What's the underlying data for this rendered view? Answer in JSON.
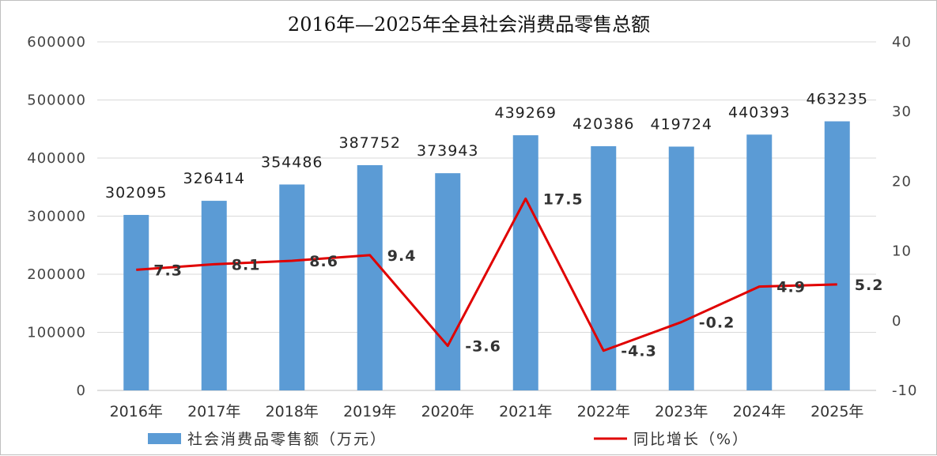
{
  "chart_data": {
    "type": "bar+line",
    "title": "2016年—2025年全县社会消费品零售总额",
    "categories": [
      "2016年",
      "2017年",
      "2018年",
      "2019年",
      "2020年",
      "2021年",
      "2022年",
      "2023年",
      "2024年",
      "2025年"
    ],
    "series": [
      {
        "name": "社会消费品零售额（万元）",
        "type": "bar",
        "axis": "left",
        "color": "#5b9bd5",
        "values": [
          302095,
          326414,
          354486,
          387752,
          373943,
          439269,
          420386,
          419724,
          440393,
          463235
        ]
      },
      {
        "name": "同比增长（%）",
        "type": "line",
        "axis": "right",
        "color": "#e00000",
        "values": [
          7.3,
          8.1,
          8.6,
          9.4,
          -3.6,
          17.5,
          -4.3,
          -0.2,
          4.9,
          5.2
        ]
      }
    ],
    "y_left": {
      "ylim": [
        0,
        600000
      ],
      "ticks": [
        "0",
        "100000",
        "200000",
        "300000",
        "400000",
        "500000",
        "600000"
      ]
    },
    "y_right": {
      "ylim": [
        -10,
        40
      ],
      "ticks": [
        "-10",
        "0",
        "10",
        "20",
        "30",
        "40"
      ]
    },
    "grid": true,
    "legend": "bottom"
  }
}
